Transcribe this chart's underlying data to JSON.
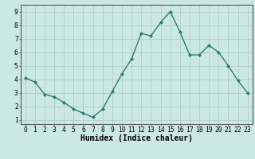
{
  "x": [
    0,
    1,
    2,
    3,
    4,
    5,
    6,
    7,
    8,
    9,
    10,
    11,
    12,
    13,
    14,
    15,
    16,
    17,
    18,
    19,
    20,
    21,
    22,
    23
  ],
  "y": [
    4.1,
    3.8,
    2.9,
    2.7,
    2.3,
    1.8,
    1.5,
    1.2,
    1.8,
    3.1,
    4.4,
    5.5,
    7.4,
    7.2,
    8.2,
    9.0,
    7.5,
    5.8,
    5.8,
    6.5,
    6.0,
    5.0,
    3.9,
    3.0
  ],
  "line_color": "#2d7c6e",
  "marker": "D",
  "marker_size": 2.0,
  "bg_color": "#cce8e4",
  "grid_color": "#b0ceca",
  "xlabel": "Humidex (Indice chaleur)",
  "xlim": [
    -0.5,
    23.5
  ],
  "ylim": [
    0.7,
    9.5
  ],
  "yticks": [
    1,
    2,
    3,
    4,
    5,
    6,
    7,
    8,
    9
  ],
  "xticks": [
    0,
    1,
    2,
    3,
    4,
    5,
    6,
    7,
    8,
    9,
    10,
    11,
    12,
    13,
    14,
    15,
    16,
    17,
    18,
    19,
    20,
    21,
    22,
    23
  ],
  "xlabel_fontsize": 7.0,
  "tick_fontsize": 5.8,
  "line_width": 1.0
}
